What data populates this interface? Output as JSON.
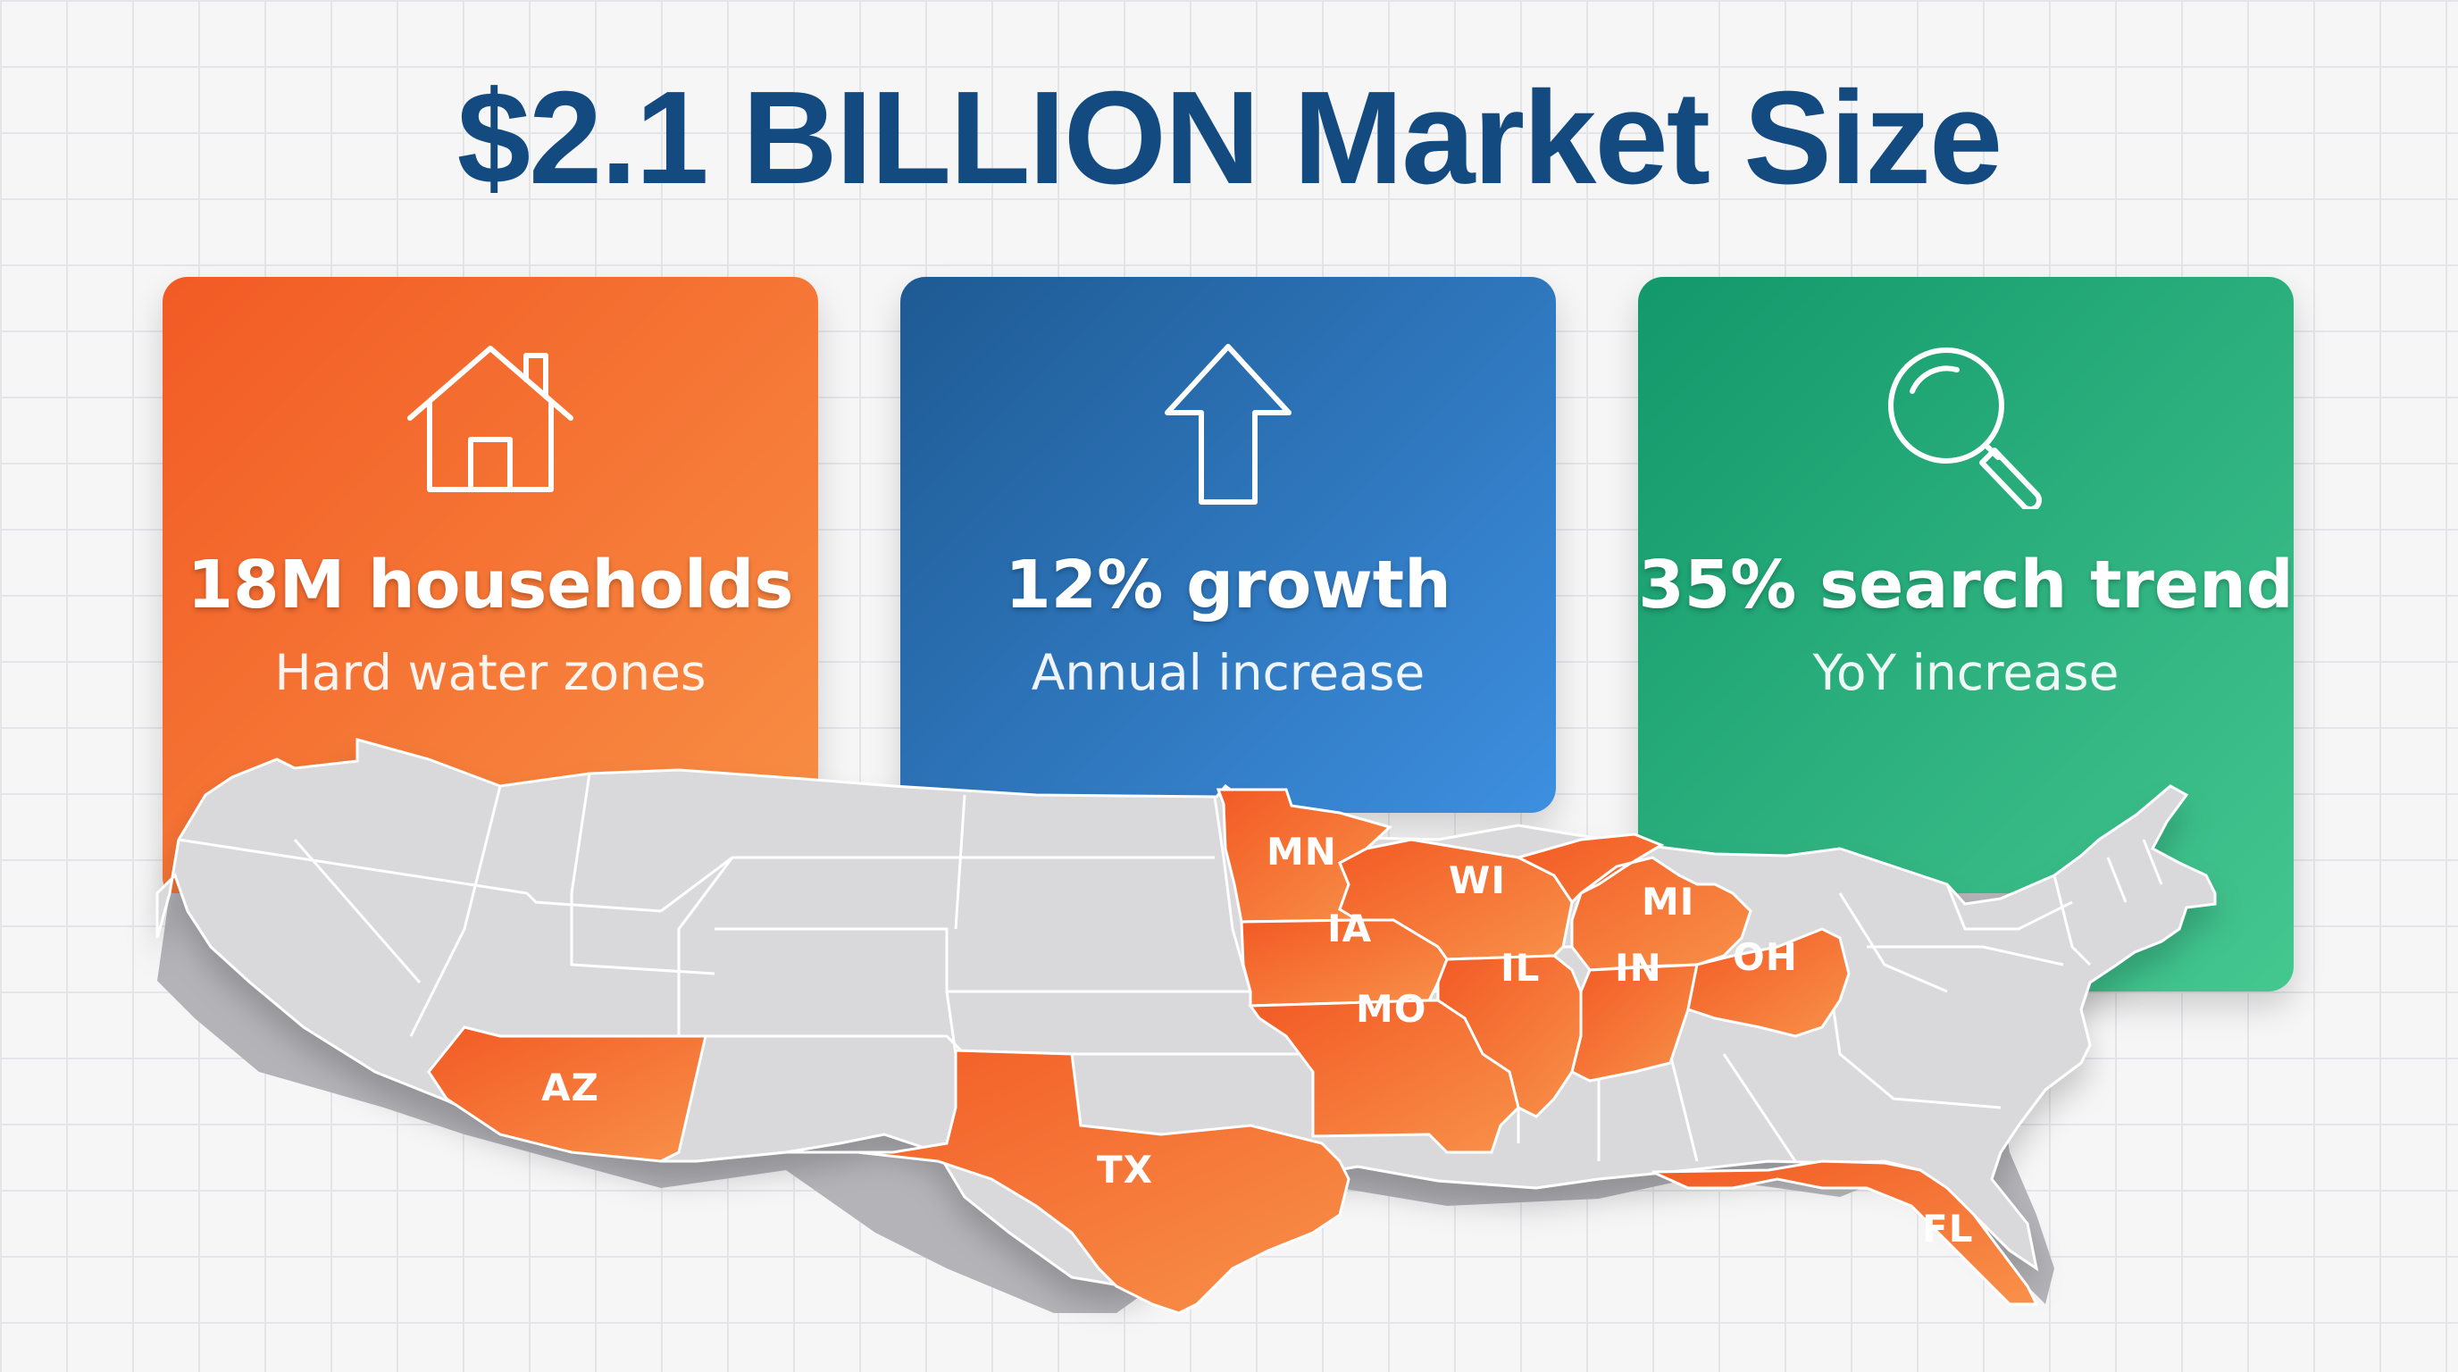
{
  "title": "$2.1 BILLION Market Size",
  "colors": {
    "title": "#134a80",
    "orange_start": "#f25a24",
    "orange_end": "#f89146",
    "blue_start": "#1e5a93",
    "blue_end": "#3d8fe0",
    "green_start": "#12986b",
    "green_end": "#45c790",
    "map_gray": "#d9d9dc",
    "map_side": "#b3b3b8",
    "highlight": "#f0702f",
    "highlight_side": "#c6521d"
  },
  "cards": [
    {
      "id": "orange",
      "icon": "house-icon",
      "headline": "18M households",
      "sub": "Hard water zones"
    },
    {
      "id": "blue",
      "icon": "arrow-up-icon",
      "headline": "12% growth",
      "sub": "Annual increase"
    },
    {
      "id": "green",
      "icon": "magnifying-glass-icon",
      "headline": "35% search trend",
      "sub": "YoY increase"
    }
  ],
  "map": {
    "highlighted_states": [
      "MN",
      "WI",
      "MI",
      "IA",
      "IL",
      "IN",
      "OH",
      "MO",
      "AZ",
      "TX",
      "FL"
    ],
    "labels": {
      "MN": "MN",
      "WI": "WI",
      "MI": "MI",
      "IA": "IA",
      "IL": "IL",
      "IN": "IN",
      "OH": "OH",
      "MO": "MO",
      "AZ": "AZ",
      "TX": "TX",
      "FL": "FL"
    }
  }
}
